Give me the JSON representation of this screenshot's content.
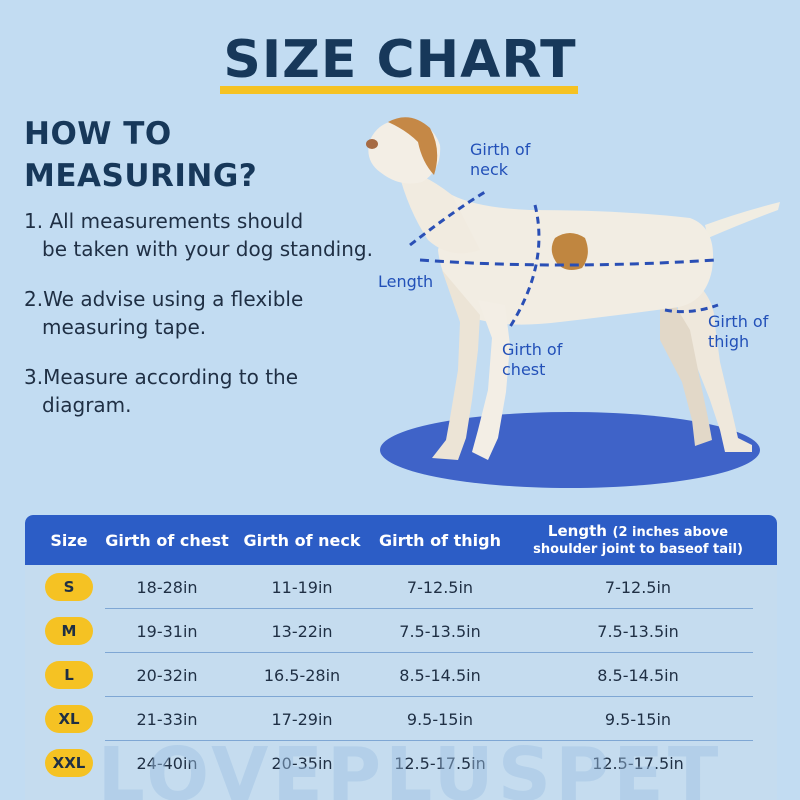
{
  "title": "SIZE CHART",
  "howto": {
    "line1": "HOW TO",
    "line2": "MEASURING?"
  },
  "steps": [
    {
      "a": "1. All measurements should",
      "b": "be taken with your dog standing."
    },
    {
      "a": "2.We advise using a flexible",
      "b": "measuring tape."
    },
    {
      "a": "3.Measure according to the",
      "b": "diagram."
    }
  ],
  "diagram": {
    "neck": [
      "Girth of",
      "neck"
    ],
    "length": "Length",
    "chest": [
      "Girth of",
      "chest"
    ],
    "thigh": [
      "Girth of",
      "thigh"
    ]
  },
  "table": {
    "headers": {
      "size": "Size",
      "chest": "Girth of chest",
      "neck": "Girth of neck",
      "thigh": "Girth of thigh",
      "length_main": "Length",
      "length_note1": "(2 inches above",
      "length_note2": "shoulder joint to baseof tail)"
    },
    "rows": [
      {
        "size": "S",
        "chest": "18-28in",
        "neck": "11-19in",
        "thigh": "7-12.5in",
        "length": "7-12.5in"
      },
      {
        "size": "M",
        "chest": "19-31in",
        "neck": "13-22in",
        "thigh": "7.5-13.5in",
        "length": "7.5-13.5in"
      },
      {
        "size": "L",
        "chest": "20-32in",
        "neck": "16.5-28in",
        "thigh": "8.5-14.5in",
        "length": "8.5-14.5in"
      },
      {
        "size": "XL",
        "chest": "21-33in",
        "neck": "17-29in",
        "thigh": "9.5-15in",
        "length": "9.5-15in"
      },
      {
        "size": "XXL",
        "chest": "24-40in",
        "neck": "20-35in",
        "thigh": "12.5-17.5in",
        "length": "12.5-17.5in"
      }
    ]
  },
  "watermark": "LOVEPLUSPET",
  "colors": {
    "background": "#c2dcf2",
    "title": "#17385a",
    "accent_yellow": "#f5c223",
    "header_blue": "#2c5dc6",
    "measure_blue": "#2250b8"
  }
}
